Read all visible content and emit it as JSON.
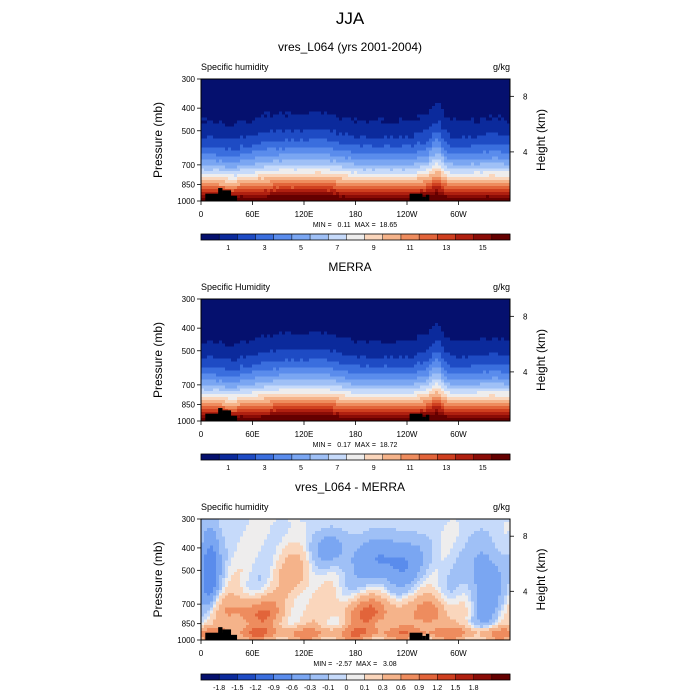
{
  "page_title": "JJA",
  "chart_data": [
    {
      "type": "heatmap",
      "title": "vres_L064 (yrs 2001-2004)",
      "left_label": "Specific humidity",
      "units": "g/kg",
      "ylabel": "Pressure (mb)",
      "y2label": "Height (km)",
      "xlabel": "",
      "x_ticks": [
        "0",
        "60E",
        "120E",
        "180",
        "120W",
        "60W"
      ],
      "y_ticks": [
        "300",
        "400",
        "500",
        "700",
        "850",
        "1000"
      ],
      "y2_ticks": [
        "8",
        "4"
      ],
      "ylim": [
        300,
        1000
      ],
      "stats": "MIN =   0.11  MAX =  18.65",
      "min": 0.11,
      "max": 18.65,
      "colorbar_labels": [
        "1",
        "3",
        "5",
        "7",
        "9",
        "11",
        "13",
        "15"
      ],
      "colorbar_levels": [
        0.5,
        1,
        2,
        3,
        4,
        5,
        6,
        7,
        8,
        9,
        10,
        11,
        12,
        13,
        14,
        15,
        16
      ]
    },
    {
      "type": "heatmap",
      "title": "MERRA",
      "left_label": "Specific Humidity",
      "units": "g/kg",
      "ylabel": "Pressure (mb)",
      "y2label": "Height (km)",
      "xlabel": "",
      "x_ticks": [
        "0",
        "60E",
        "120E",
        "180",
        "120W",
        "60W"
      ],
      "y_ticks": [
        "300",
        "400",
        "500",
        "700",
        "850",
        "1000"
      ],
      "y2_ticks": [
        "8",
        "4"
      ],
      "ylim": [
        300,
        1000
      ],
      "stats": "MIN =   0.17  MAX =  18.72",
      "min": 0.17,
      "max": 18.72,
      "colorbar_labels": [
        "1",
        "3",
        "5",
        "7",
        "9",
        "11",
        "13",
        "15"
      ],
      "colorbar_levels": [
        0.5,
        1,
        2,
        3,
        4,
        5,
        6,
        7,
        8,
        9,
        10,
        11,
        12,
        13,
        14,
        15,
        16
      ]
    },
    {
      "type": "heatmap",
      "title": "vres_L064 - MERRA",
      "left_label": "Specific humidity",
      "units": "g/kg",
      "ylabel": "Pressure (mb)",
      "y2label": "Height (km)",
      "xlabel": "",
      "x_ticks": [
        "0",
        "60E",
        "120E",
        "180",
        "120W",
        "60W"
      ],
      "y_ticks": [
        "300",
        "400",
        "500",
        "700",
        "850",
        "1000"
      ],
      "y2_ticks": [
        "8",
        "4"
      ],
      "ylim": [
        300,
        1000
      ],
      "stats": "MIN =  -2.57  MAX =   3.08",
      "min": -2.57,
      "max": 3.08,
      "colorbar_labels": [
        "-1.8",
        "-1.5",
        "-1.2",
        "-0.9",
        "-0.6",
        "-0.3",
        "-0.1",
        "0",
        "0.1",
        "0.3",
        "0.6",
        "0.9",
        "1.2",
        "1.5",
        "1.8"
      ],
      "colorbar_levels": [
        -1.8,
        -1.5,
        -1.2,
        -0.9,
        -0.6,
        -0.3,
        -0.1,
        0,
        0.1,
        0.3,
        0.6,
        0.9,
        1.2,
        1.5,
        1.8
      ]
    }
  ],
  "colors": {
    "bluered": [
      "#05106e",
      "#0b2a9c",
      "#1e4bc4",
      "#3a6ede",
      "#5a8cec",
      "#7aa6f2",
      "#9fc0f6",
      "#c6dafa",
      "#eeeded",
      "#fad6bc",
      "#f5b38a",
      "#ee8c5e",
      "#e2643a",
      "#cf3f1f",
      "#b02010",
      "#8a0c06",
      "#650000"
    ],
    "land": "#000000"
  }
}
